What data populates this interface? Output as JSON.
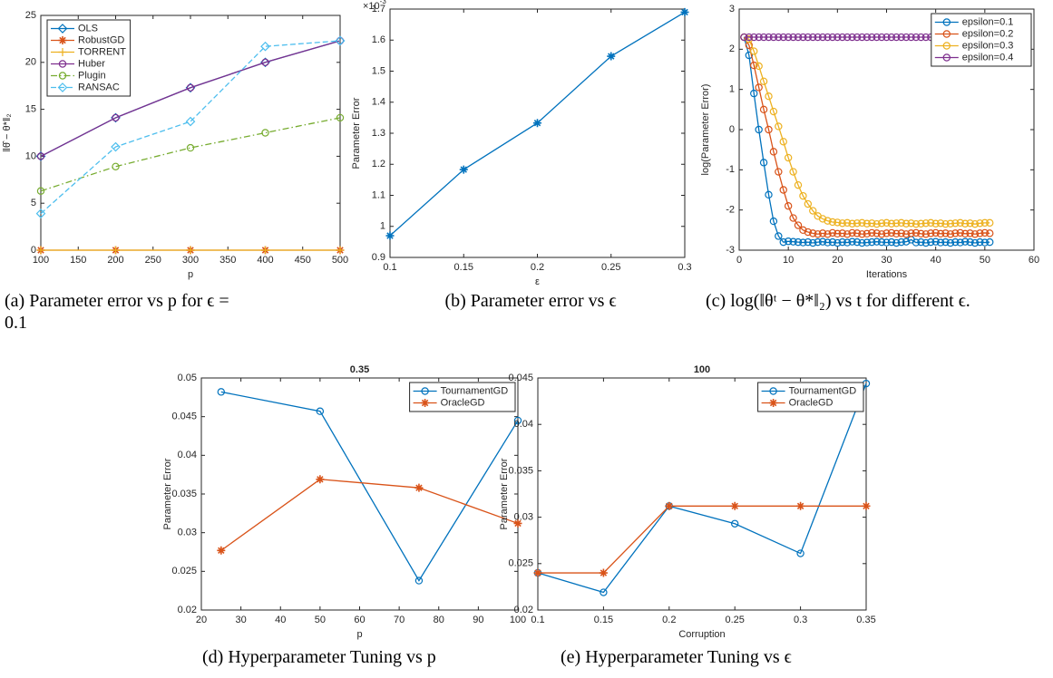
{
  "chart_data": [
    {
      "type": "line",
      "caption": "(a) Parameter error vs p for ϵ = 0.1",
      "xlabel": "p",
      "ylabel": "‖θ̂ − θ*‖₂",
      "x": [
        100,
        200,
        300,
        400,
        500
      ],
      "xlim": [
        100,
        500
      ],
      "xticks": [
        100,
        150,
        200,
        250,
        300,
        350,
        400,
        450,
        500
      ],
      "ylim": [
        0,
        25
      ],
      "yticks": [
        0,
        5,
        10,
        15,
        20,
        25
      ],
      "legend": "northwest",
      "series": [
        {
          "name": "OLS",
          "color": "#0072bd",
          "marker": "diamond",
          "line_style": "solid",
          "values": [
            10,
            14.1,
            17.3,
            20,
            22.3
          ]
        },
        {
          "name": "RobustGD",
          "color": "#d95319",
          "marker": "star",
          "line_style": "solid",
          "values": [
            0,
            0,
            0,
            0,
            0
          ]
        },
        {
          "name": "TORRENT",
          "color": "#edb120",
          "marker": "plus",
          "line_style": "solid",
          "values": [
            0,
            0,
            0,
            0,
            0
          ]
        },
        {
          "name": "Huber",
          "color": "#7e2f8e",
          "marker": "circle",
          "line_style": "solid",
          "values": [
            10,
            14.1,
            17.3,
            20,
            22.3
          ]
        },
        {
          "name": "Plugin",
          "color": "#77ac30",
          "marker": "circle",
          "line_style": "dashdot",
          "values": [
            6.3,
            8.9,
            10.9,
            12.5,
            14.1
          ]
        },
        {
          "name": "RANSAC",
          "color": "#4dbeee",
          "marker": "diamond",
          "line_style": "dashed",
          "values": [
            3.9,
            11,
            13.7,
            21.7,
            22.3
          ]
        }
      ]
    },
    {
      "type": "line",
      "caption": "(b) Parameter error vs ϵ",
      "xlabel": "ε",
      "ylabel": "Parameter Error",
      "y_multiplier": "×10",
      "y_multiplier_exponent": "-3",
      "x": [
        0.1,
        0.15,
        0.2,
        0.25,
        0.3
      ],
      "xlim": [
        0.1,
        0.3
      ],
      "xticks": [
        0.1,
        0.15,
        0.2,
        0.25,
        0.3
      ],
      "ylim": [
        0.9,
        1.7
      ],
      "yticks": [
        0.9,
        1,
        1.1,
        1.2,
        1.3,
        1.4,
        1.5,
        1.6,
        1.7
      ],
      "color": "#0072bd",
      "marker": "star",
      "line_style": "solid",
      "values": [
        0.97,
        1.183,
        1.333,
        1.548,
        1.69
      ]
    },
    {
      "type": "line",
      "caption": "(c) log(‖θᵗ − θ*‖₂) vs t for different ϵ.",
      "xlabel": "Iterations",
      "ylabel": "log(Parameter Error)",
      "x": [
        1,
        2,
        3,
        4,
        5,
        6,
        7,
        8,
        9,
        10,
        11,
        12,
        13,
        14,
        15,
        16,
        17,
        18,
        19,
        20,
        21,
        22,
        23,
        24,
        25,
        26,
        27,
        28,
        29,
        30,
        31,
        32,
        33,
        34,
        35,
        36,
        37,
        38,
        39,
        40,
        41,
        42,
        43,
        44,
        45,
        46,
        47,
        48,
        49,
        50,
        51
      ],
      "xlim": [
        0,
        60
      ],
      "xticks": [
        0,
        10,
        20,
        30,
        40,
        50,
        60
      ],
      "ylim": [
        -3,
        3
      ],
      "yticks": [
        -3,
        -2,
        -1,
        0,
        1,
        2,
        3
      ],
      "legend": "northeast",
      "series": [
        {
          "name": "epsilon=0.1",
          "color": "#0072bd",
          "marker": "circle",
          "line_style": "solid",
          "values": [
            2.3,
            1.85,
            0.9,
            0.0,
            -0.82,
            -1.62,
            -2.28,
            -2.65,
            -2.8,
            -2.78,
            -2.79,
            -2.8,
            -2.81,
            -2.8,
            -2.82,
            -2.8,
            -2.79,
            -2.81,
            -2.8,
            -2.82,
            -2.8,
            -2.81,
            -2.79,
            -2.8,
            -2.82,
            -2.81,
            -2.8,
            -2.79,
            -2.8,
            -2.81,
            -2.8,
            -2.82,
            -2.8,
            -2.79,
            -2.74,
            -2.81,
            -2.8,
            -2.82,
            -2.8,
            -2.79,
            -2.81,
            -2.8,
            -2.82,
            -2.8,
            -2.81,
            -2.79,
            -2.8,
            -2.82,
            -2.8,
            -2.81,
            -2.8
          ]
        },
        {
          "name": "epsilon=0.2",
          "color": "#d95319",
          "marker": "circle",
          "line_style": "solid",
          "values": [
            2.3,
            2.1,
            1.6,
            1.05,
            0.5,
            0.0,
            -0.55,
            -1.05,
            -1.5,
            -1.9,
            -2.2,
            -2.38,
            -2.5,
            -2.55,
            -2.58,
            -2.6,
            -2.58,
            -2.6,
            -2.57,
            -2.59,
            -2.58,
            -2.6,
            -2.57,
            -2.58,
            -2.6,
            -2.59,
            -2.57,
            -2.58,
            -2.6,
            -2.58,
            -2.57,
            -2.59,
            -2.58,
            -2.6,
            -2.58,
            -2.57,
            -2.59,
            -2.6,
            -2.58,
            -2.57,
            -2.59,
            -2.58,
            -2.6,
            -2.58,
            -2.57,
            -2.59,
            -2.58,
            -2.6,
            -2.58,
            -2.57,
            -2.58
          ]
        },
        {
          "name": "epsilon=0.3",
          "color": "#edb120",
          "marker": "circle",
          "line_style": "solid",
          "values": [
            2.3,
            2.25,
            1.95,
            1.58,
            1.2,
            0.83,
            0.45,
            0.08,
            -0.3,
            -0.7,
            -1.05,
            -1.38,
            -1.65,
            -1.85,
            -2.02,
            -2.15,
            -2.22,
            -2.27,
            -2.3,
            -2.31,
            -2.33,
            -2.32,
            -2.34,
            -2.33,
            -2.32,
            -2.34,
            -2.33,
            -2.35,
            -2.33,
            -2.32,
            -2.34,
            -2.33,
            -2.32,
            -2.34,
            -2.33,
            -2.35,
            -2.34,
            -2.33,
            -2.32,
            -2.34,
            -2.33,
            -2.35,
            -2.34,
            -2.33,
            -2.32,
            -2.34,
            -2.33,
            -2.35,
            -2.33,
            -2.32,
            -2.32
          ]
        },
        {
          "name": "epsilon=0.4",
          "color": "#7e2f8e",
          "marker": "circle",
          "line_style": "solid",
          "values": [
            2.3,
            2.3,
            2.3,
            2.3,
            2.3,
            2.3,
            2.3,
            2.3,
            2.3,
            2.3,
            2.3,
            2.3,
            2.3,
            2.3,
            2.3,
            2.3,
            2.3,
            2.3,
            2.3,
            2.3,
            2.3,
            2.3,
            2.3,
            2.3,
            2.3,
            2.3,
            2.3,
            2.3,
            2.3,
            2.3,
            2.3,
            2.3,
            2.3,
            2.3,
            2.3,
            2.3,
            2.3,
            2.3,
            2.3,
            2.3,
            2.3,
            2.3,
            2.3,
            2.3,
            2.3,
            2.3,
            2.3,
            2.3,
            2.3,
            2.3,
            2.3
          ]
        }
      ]
    },
    {
      "type": "line",
      "title": "0.35",
      "caption": "(d) Hyperparameter Tuning vs p",
      "xlabel": "p",
      "ylabel": "Parameter Error",
      "x": [
        25,
        50,
        75,
        100
      ],
      "xlim": [
        20,
        100
      ],
      "xticks": [
        20,
        30,
        40,
        50,
        60,
        70,
        80,
        90,
        100
      ],
      "ylim": [
        0.02,
        0.05
      ],
      "yticks": [
        0.02,
        0.025,
        0.03,
        0.035,
        0.04,
        0.045,
        0.05
      ],
      "legend": "northeast",
      "series": [
        {
          "name": "TournamentGD",
          "color": "#0072bd",
          "marker": "circle",
          "line_style": "solid",
          "values": [
            0.0482,
            0.0457,
            0.0238,
            0.0445
          ]
        },
        {
          "name": "OracleGD",
          "color": "#d95319",
          "marker": "star",
          "line_style": "solid",
          "values": [
            0.0277,
            0.0369,
            0.0358,
            0.0312
          ]
        }
      ]
    },
    {
      "type": "line",
      "title": "100",
      "caption": "(e) Hyperparameter Tuning vs ϵ",
      "xlabel": "Corruption",
      "ylabel": "Parameter Error",
      "x": [
        0.1,
        0.15,
        0.2,
        0.25,
        0.3,
        0.35
      ],
      "xlim": [
        0.1,
        0.35
      ],
      "xticks": [
        0.1,
        0.15,
        0.2,
        0.25,
        0.3,
        0.35
      ],
      "ylim": [
        0.02,
        0.045
      ],
      "yticks": [
        0.02,
        0.025,
        0.03,
        0.035,
        0.04,
        0.045
      ],
      "legend": "northeast",
      "series": [
        {
          "name": "TournamentGD",
          "color": "#0072bd",
          "marker": "circle",
          "line_style": "solid",
          "values": [
            0.024,
            0.0219,
            0.0312,
            0.0293,
            0.0261,
            0.0444
          ]
        },
        {
          "name": "OracleGD",
          "color": "#d95319",
          "marker": "star",
          "line_style": "solid",
          "values": [
            0.024,
            0.024,
            0.0312,
            0.0312,
            0.0312,
            0.0312
          ]
        }
      ]
    }
  ]
}
